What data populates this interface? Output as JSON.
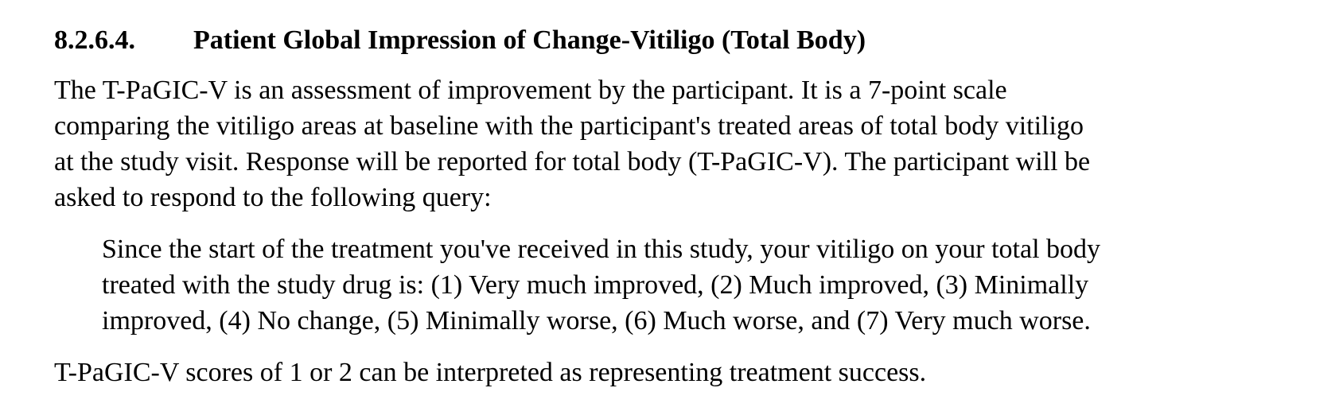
{
  "section": {
    "number": "8.2.6.4.",
    "title": "Patient Global Impression of Change-Vitiligo (Total Body)"
  },
  "paragraphs": [
    {
      "lines": [
        "The T-PaGIC-V is an assessment of improvement by the participant.  It is a 7-point scale",
        "comparing the vitiligo areas at baseline with the participant's treated areas of total body vitiligo",
        "at the study visit.  Response will be reported for total body (T-PaGIC-V).  The participant will be",
        "asked to respond to the following query:"
      ]
    },
    {
      "lines": [
        "Since the start of the treatment you've received in this study, your vitiligo on your total body",
        "treated with the study drug is:  (1) Very much improved, (2) Much improved, (3) Minimally",
        "improved, (4) No change, (5) Minimally worse, (6) Much worse, and (7) Very much worse."
      ]
    },
    {
      "lines": [
        "T-PaGIC-V scores of 1 or 2 can be interpreted as representing treatment success."
      ]
    }
  ]
}
